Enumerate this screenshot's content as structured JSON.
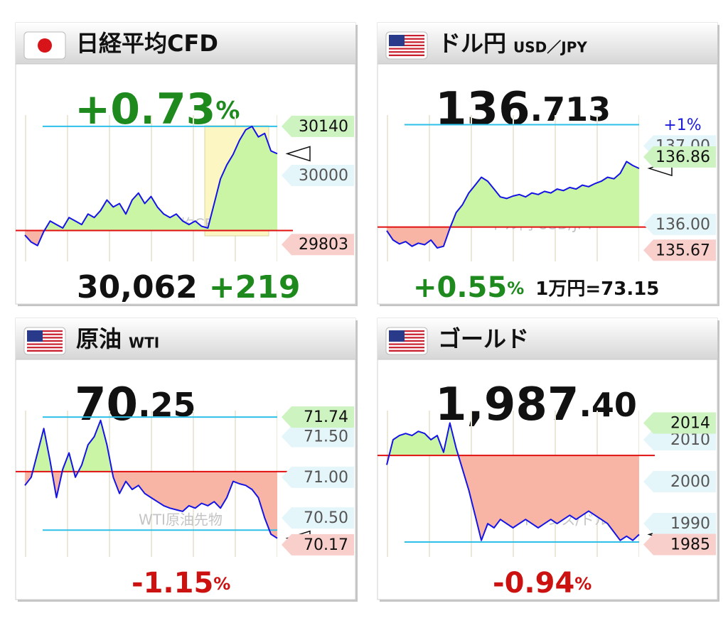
{
  "chart_data": [
    {
      "type": "line",
      "title": "日経平均CFD",
      "flag": "jp",
      "headline": [
        {
          "text": "+0.73",
          "color": "#1e8a1e"
        },
        {
          "text": "%",
          "color": "#1e8a1e"
        }
      ],
      "footer": [
        {
          "text": "30,062",
          "color": "#111111"
        },
        {
          "text": "+219",
          "color": "#1e8a1e"
        }
      ],
      "watermark": "日経平均CFD",
      "values": [
        29830,
        29810,
        29800,
        29840,
        29870,
        29860,
        29850,
        29880,
        29870,
        29860,
        29890,
        29880,
        29900,
        29930,
        29910,
        29920,
        29890,
        29930,
        29950,
        29920,
        29940,
        29910,
        29890,
        29880,
        29890,
        29870,
        29860,
        29870,
        29855,
        29850,
        29920,
        29990,
        30030,
        30060,
        30100,
        30130,
        30140,
        30110,
        30120,
        30070,
        30062
      ],
      "ylim": [
        29771,
        30156
      ],
      "yticks": [
        30000
      ],
      "high": 30140,
      "low": 29803,
      "prev_close": 29843,
      "guides": [
        30140
      ],
      "line_color": "#1414e6",
      "up_color": "#c9f5a4",
      "down_color": "#f8b4a4"
    },
    {
      "type": "line",
      "title": "ドル円",
      "subtitle": "USD／JPY",
      "flag": "us",
      "note": "+1%",
      "headline": [
        {
          "text": "136",
          "color": "#111111"
        },
        {
          "text": ".713",
          "color": "#111111"
        }
      ],
      "footer": [
        {
          "text": "+0.55",
          "color": "#1e8a1e"
        },
        {
          "text": "%",
          "color": "#1e8a1e"
        },
        {
          "text": "1万円=73.15",
          "color": "#111111"
        }
      ],
      "watermark": "ドル円 USD/JPY",
      "values": [
        135.92,
        135.8,
        135.75,
        135.78,
        135.72,
        135.76,
        135.74,
        135.8,
        135.7,
        135.72,
        135.95,
        136.15,
        136.25,
        136.4,
        136.5,
        136.6,
        136.55,
        136.45,
        136.35,
        136.33,
        136.36,
        136.38,
        136.35,
        136.4,
        136.38,
        136.42,
        136.4,
        136.45,
        136.43,
        136.47,
        136.45,
        136.5,
        136.48,
        136.52,
        136.55,
        136.6,
        136.58,
        136.65,
        136.8,
        136.75,
        136.713
      ],
      "ylim": [
        135.6,
        137.32
      ],
      "yticks": [
        {
          "value": 136,
          "label": "136.00"
        },
        {
          "value": 137,
          "label": "137.00"
        }
      ],
      "high": 136.86,
      "low": 135.67,
      "prev_close": 135.965,
      "guides": [
        137.27
      ],
      "line_color": "#1414e6",
      "up_color": "#c9f5a4",
      "down_color": "#f8b4a4"
    },
    {
      "type": "line",
      "title": "原油",
      "subtitle": "WTI",
      "flag": "us",
      "headline": [
        {
          "text": "70",
          "color": "#111111"
        },
        {
          "text": ".25",
          "color": "#111111"
        }
      ],
      "footer": [
        {
          "text": "-1.15",
          "color": "#cc1111"
        },
        {
          "text": "%",
          "color": "#cc1111"
        }
      ],
      "watermark": "WTI原油先物",
      "values": [
        70.9,
        71.0,
        71.3,
        71.6,
        71.2,
        70.75,
        71.1,
        71.3,
        71.0,
        71.15,
        71.4,
        71.5,
        71.7,
        71.4,
        71.0,
        70.8,
        70.95,
        70.85,
        70.9,
        70.8,
        70.75,
        70.7,
        70.65,
        70.62,
        70.6,
        70.58,
        70.65,
        70.62,
        70.68,
        70.65,
        70.7,
        70.62,
        70.75,
        70.95,
        70.92,
        70.9,
        70.85,
        70.75,
        70.5,
        70.3,
        70.25
      ],
      "ylim": [
        70.09,
        71.75
      ],
      "yticks": [
        {
          "value": 71.5,
          "label": "71.50"
        },
        {
          "value": 71,
          "label": "71.00"
        },
        {
          "value": 70.5,
          "label": "70.50"
        }
      ],
      "high": 71.74,
      "low": 70.17,
      "prev_close": 71.07,
      "guides": [
        71.74,
        70.35
      ],
      "line_color": "#1414e6",
      "up_color": "#c9f5a4",
      "down_color": "#f8b4a4"
    },
    {
      "type": "line",
      "title": "ゴールド",
      "flag": "us",
      "headline": [
        {
          "text": "1,987",
          "color": "#111111"
        },
        {
          "text": ".40",
          "color": "#111111"
        }
      ],
      "footer": [
        {
          "text": "-0.94",
          "color": "#cc1111"
        },
        {
          "text": "%",
          "color": "#cc1111"
        }
      ],
      "watermark": "金トロイオンス/ドル",
      "values": [
        2004,
        2010,
        2011,
        2011.5,
        2011,
        2012,
        2011.5,
        2010,
        2011,
        2007,
        2014,
        2008,
        2003,
        1998,
        1992,
        1986,
        1990,
        1989,
        1991,
        1990,
        1989,
        1990,
        1991,
        1990,
        1989,
        1990,
        1991,
        1990,
        1991,
        1992,
        1991,
        1992,
        1993,
        1992,
        1991,
        1990,
        1988,
        1986,
        1987,
        1986,
        1987.4
      ],
      "ylim": [
        1983.4,
        2015.6
      ],
      "yticks": [
        2010,
        2000,
        1990
      ],
      "high": 2014,
      "low": 1985,
      "prev_close": 2006.26,
      "guides": [
        1985.6
      ],
      "line_color": "#1414e6",
      "up_color": "#c9f5a4",
      "down_color": "#f8b4a4"
    }
  ]
}
